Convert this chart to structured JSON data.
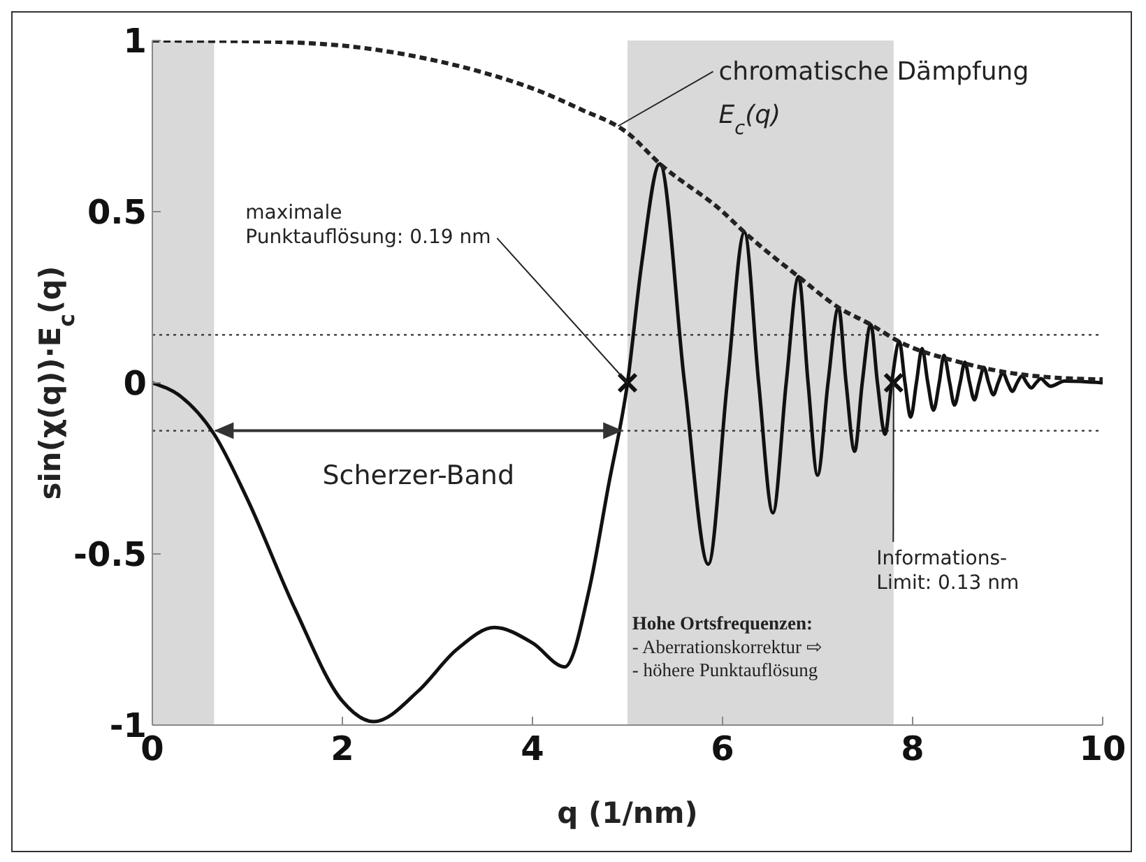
{
  "chart_data": {
    "type": "line",
    "xlabel": "q (1/nm)",
    "ylabel": "sin(χ(q))·E$_{c}$(q)",
    "xlim": [
      0,
      10
    ],
    "xticks": [
      0,
      2,
      4,
      6,
      8,
      10
    ],
    "ylim": [
      -1,
      1
    ],
    "yticks": [
      -1,
      -0.5,
      0,
      0.5,
      1
    ],
    "grid": false,
    "series": [
      {
        "color": "#111111",
        "line_style": "solid",
        "marker": "none",
        "x": [
          0,
          0.3,
          0.65,
          1,
          1.5,
          2,
          2.33,
          2.8,
          3.2,
          3.6,
          4,
          4.34,
          4.6,
          4.8,
          5,
          5.15,
          5.34,
          5.6,
          5.85,
          6.05,
          6.23,
          6.38,
          6.53,
          6.67,
          6.8,
          6.9,
          7.0,
          7.11,
          7.22,
          7.3,
          7.39,
          7.47,
          7.56,
          7.63,
          7.71,
          7.78,
          7.86,
          7.92,
          7.98,
          8.04,
          8.1,
          8.16,
          8.22,
          8.28,
          8.33,
          8.39,
          8.44,
          8.5,
          8.55,
          8.6,
          8.65,
          8.7,
          8.75,
          8.8,
          8.85,
          8.9,
          8.95,
          9,
          9.05,
          9.1,
          9.15,
          9.2,
          9.25,
          9.3,
          9.35,
          9.4,
          9.45,
          9.6,
          10
        ],
        "values": [
          0,
          -0.04,
          -0.15,
          -0.34,
          -0.66,
          -0.93,
          -0.99,
          -0.9,
          -0.78,
          -0.715,
          -0.76,
          -0.83,
          -0.6,
          -0.3,
          0,
          0.35,
          0.64,
          0,
          -0.53,
          0,
          0.44,
          0,
          -0.38,
          0,
          0.31,
          0,
          -0.27,
          0,
          0.22,
          0,
          -0.2,
          0,
          0.17,
          0,
          -0.15,
          0,
          0.12,
          0,
          -0.1,
          0,
          0.1,
          0,
          -0.08,
          0,
          0.08,
          0,
          -0.065,
          0,
          0.06,
          0,
          -0.05,
          0,
          0.045,
          0,
          -0.035,
          0,
          0.03,
          0,
          -0.025,
          0,
          0.02,
          0,
          -0.015,
          0,
          0.012,
          0,
          -0.01,
          0.005,
          0
        ]
      },
      {
        "color": "#222222",
        "line_style": "dashed",
        "marker": "none",
        "x": [
          0,
          1,
          2,
          3,
          3.5,
          4,
          4.5,
          5,
          5.34,
          6,
          6.23,
          6.8,
          7.22,
          7.56,
          7.86,
          8.5,
          9,
          9.5,
          10
        ],
        "values": [
          1,
          0.998,
          0.985,
          0.94,
          0.905,
          0.86,
          0.8,
          0.73,
          0.64,
          0.5,
          0.44,
          0.31,
          0.22,
          0.17,
          0.12,
          0.06,
          0.03,
          0.015,
          0.01
        ]
      },
      {
        "type": "scatter",
        "color": "#111111",
        "marker": "cross",
        "x": [
          5,
          7.8
        ],
        "values": [
          0,
          0
        ]
      }
    ],
    "bands": [
      {
        "axis": "x",
        "from": 0,
        "to": 0.65,
        "color": "#d9d9d9"
      },
      {
        "axis": "x",
        "from": 5,
        "to": 7.8,
        "color": "#d9d9d9"
      }
    ],
    "ref_lines": [
      {
        "axis": "y",
        "value": 0.14,
        "line_style": "dotted",
        "color": "#333333"
      },
      {
        "axis": "y",
        "value": -0.14,
        "line_style": "dotted",
        "color": "#333333"
      }
    ],
    "annotations": [
      {
        "text": "chromatische Dämpfung",
        "x": 4.9,
        "y": 0.75
      },
      "E$_{c}$(q)",
      {
        "text": "maximale\nPunktauflösung: 0.19 nm",
        "x": 5,
        "y": 0
      },
      {
        "text": "Scherzer-Band",
        "x": 2.8,
        "y": -0.14
      },
      {
        "text": "Informations-\nLimit: 0.13 nm",
        "x": 7.8,
        "y": 0
      },
      "Hohe Ortsfrequenzen:\n- Aberrationskorrektur ⇨\n- höhere Punktauflösung"
    ]
  }
}
